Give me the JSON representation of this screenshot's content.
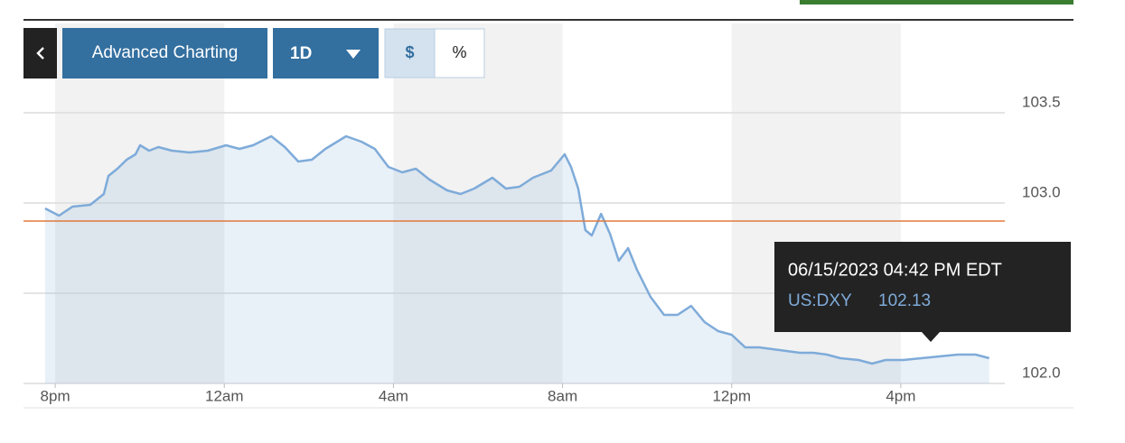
{
  "toolbar": {
    "title": "Advanced Charting",
    "range": "1D",
    "units": [
      "$",
      "%"
    ],
    "active_unit": 0
  },
  "chart_data": {
    "type": "line",
    "x": [
      19.76,
      20.09,
      20.41,
      20.83,
      21.15,
      21.26,
      21.47,
      21.69,
      21.9,
      22.01,
      22.22,
      22.44,
      22.76,
      23.18,
      23.61,
      24.04,
      24.36,
      24.68,
      25.11,
      25.43,
      25.75,
      26.07,
      26.39,
      26.88,
      27.24,
      27.56,
      27.88,
      28.21,
      28.53,
      28.85,
      29.27,
      29.59,
      29.91,
      30.34,
      30.66,
      30.98,
      31.3,
      31.73,
      32.05,
      32.2,
      32.37,
      32.54,
      32.69,
      32.91,
      33.12,
      33.33,
      33.55,
      33.76,
      34.08,
      34.4,
      34.72,
      35.04,
      35.36,
      35.68,
      36.0,
      36.32,
      36.65,
      36.97,
      37.29,
      37.61,
      37.93,
      38.25,
      38.57,
      39.0,
      39.32,
      39.64,
      40.06,
      40.49,
      40.92,
      41.35,
      41.77,
      42.09
    ],
    "series": [
      {
        "name": "US:DXY",
        "color": "#7eabd9",
        "values": [
          102.97,
          102.93,
          102.98,
          102.99,
          103.05,
          103.15,
          103.19,
          103.24,
          103.27,
          103.32,
          103.29,
          103.31,
          103.29,
          103.28,
          103.29,
          103.32,
          103.3,
          103.32,
          103.37,
          103.31,
          103.23,
          103.24,
          103.3,
          103.37,
          103.34,
          103.3,
          103.2,
          103.17,
          103.19,
          103.13,
          103.07,
          103.05,
          103.08,
          103.14,
          103.08,
          103.09,
          103.14,
          103.18,
          103.27,
          103.2,
          103.08,
          102.85,
          102.82,
          102.94,
          102.83,
          102.68,
          102.75,
          102.63,
          102.48,
          102.38,
          102.38,
          102.43,
          102.34,
          102.29,
          102.27,
          102.2,
          102.2,
          102.19,
          102.18,
          102.17,
          102.17,
          102.16,
          102.14,
          102.13,
          102.11,
          102.13,
          102.13,
          102.14,
          102.15,
          102.16,
          102.16,
          102.14
        ]
      }
    ],
    "xlim": [
      19.25,
      42.46
    ],
    "xticks": [
      {
        "value": 20,
        "label": "8pm"
      },
      {
        "value": 24,
        "label": "12am"
      },
      {
        "value": 28,
        "label": "4am"
      },
      {
        "value": 32,
        "label": "8am"
      },
      {
        "value": 36,
        "label": "12pm"
      },
      {
        "value": 40,
        "label": "4pm"
      }
    ],
    "ylim": [
      102.0,
      103.65
    ],
    "yticks": [
      {
        "value": 102,
        "label": "102.0"
      },
      {
        "value": 102.5,
        "label": null
      },
      {
        "value": 103,
        "label": "103.0"
      },
      {
        "value": 103.5,
        "label": "103.5"
      }
    ],
    "grid": true,
    "reference_line": {
      "value": 102.9,
      "color": "#e07a3c"
    },
    "tooltip": {
      "time": "06/15/2023 04:42 PM EDT",
      "symbol": "US:DXY",
      "value": 102.13
    }
  }
}
